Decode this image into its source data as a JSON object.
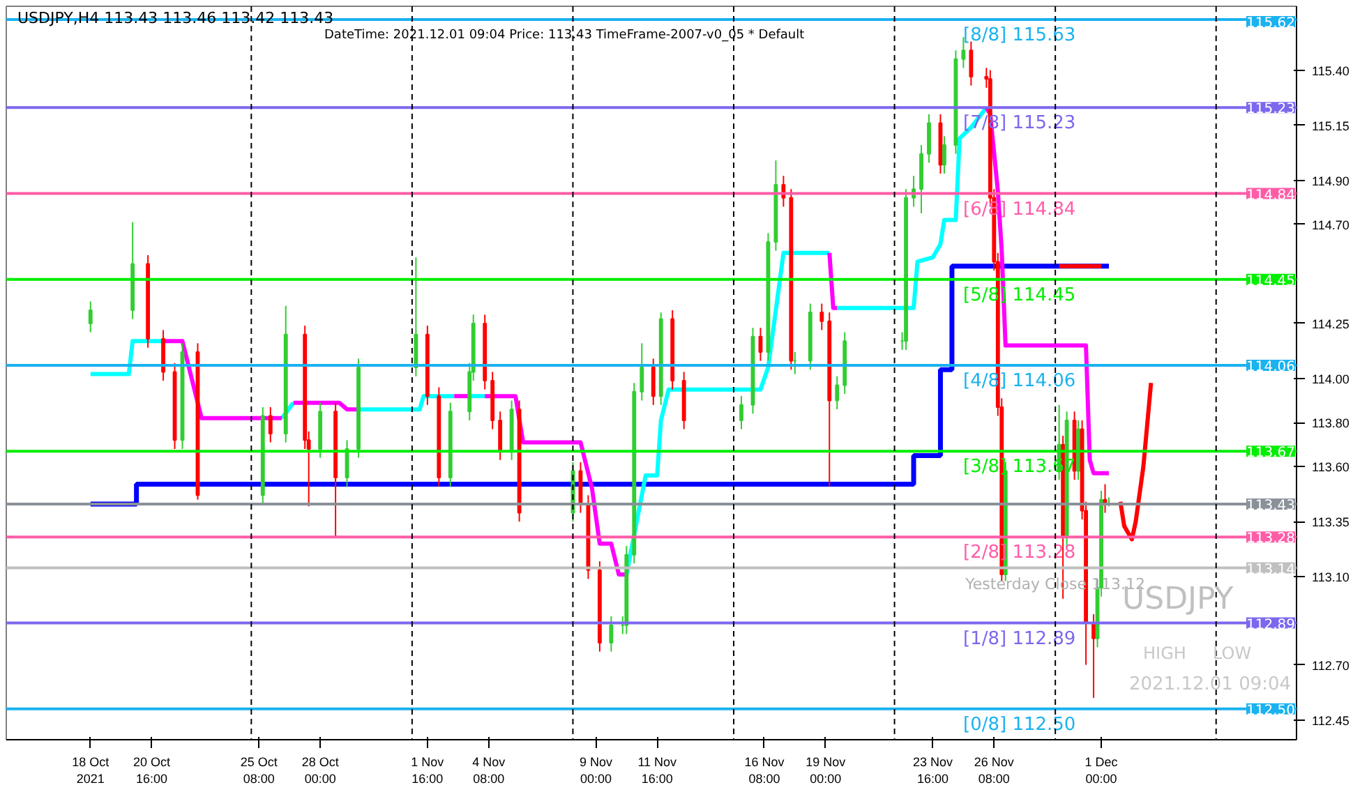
{
  "chart_data": {
    "type": "candlestick",
    "title": "USDJPY,H4  113.43 113.46 113.42 113.43",
    "subtitle": "DateTime: 2021.12.01 09:04   Price: 113.43   TimeFrame-2007-v0_05   *   Default",
    "x": [
      "2021-10-18T00:00",
      "2021-10-19T20:00",
      "2021-10-20T12:00",
      "2021-10-21T04:00",
      "2021-10-21T16:00",
      "2021-10-22T00:00",
      "2021-10-22T16:00",
      "2021-10-25T12:00",
      "2021-10-25T20:00",
      "2021-10-26T12:00",
      "2021-10-27T08:00",
      "2021-10-27T12:00",
      "2021-10-28T00:00",
      "2021-10-28T16:00",
      "2021-10-29T04:00",
      "2021-10-29T16:00",
      "2021-11-01T04:00",
      "2021-11-01T16:00",
      "2021-11-02T04:00",
      "2021-11-02T16:00",
      "2021-11-03T12:00",
      "2021-11-03T16:00",
      "2021-11-04T04:00",
      "2021-11-04T12:00",
      "2021-11-04T20:00",
      "2021-11-05T08:00",
      "2021-11-05T16:00",
      "2021-11-08T00:00",
      "2021-11-08T08:00",
      "2021-11-08T16:00",
      "2021-11-09T04:00",
      "2021-11-09T16:00",
      "2021-11-10T04:00",
      "2021-11-10T08:00",
      "2021-11-10T16:00",
      "2021-11-11T00:00",
      "2021-11-11T12:00",
      "2021-11-11T20:00",
      "2021-11-12T08:00",
      "2021-11-12T20:00",
      "2021-11-15T08:00",
      "2021-11-15T20:00",
      "2021-11-16T04:00",
      "2021-11-16T12:00",
      "2021-11-16T20:00",
      "2021-11-17T04:00",
      "2021-11-17T12:00",
      "2021-11-17T16:00",
      "2021-11-18T08:00",
      "2021-11-18T20:00",
      "2021-11-19T04:00",
      "2021-11-19T12:00",
      "2021-11-19T20:00",
      "2021-11-22T08:00",
      "2021-11-22T12:00",
      "2021-11-22T20:00",
      "2021-11-23T04:00",
      "2021-11-23T12:00",
      "2021-11-24T00:00",
      "2021-11-24T04:00",
      "2021-11-24T16:00",
      "2021-11-25T00:00",
      "2021-11-25T08:00",
      "2021-11-26T00:00",
      "2021-11-26T04:00",
      "2021-11-26T08:00",
      "2021-11-26T12:00",
      "2021-11-26T16:00",
      "2021-11-26T20:00",
      "2021-11-29T04:00",
      "2021-11-29T08:00",
      "2021-11-29T12:00",
      "2021-11-29T20:00",
      "2021-11-30T00:00",
      "2021-11-30T04:00",
      "2021-11-30T08:00",
      "2021-11-30T16:00",
      "2021-11-30T20:00",
      "2021-12-01T00:00",
      "2021-12-01T04:00",
      "2021-12-01T08:00"
    ],
    "ohlc": [
      [
        114.25,
        114.35,
        114.21,
        114.31
      ],
      [
        114.31,
        114.71,
        114.27,
        114.52
      ],
      [
        114.52,
        114.56,
        114.14,
        114.18
      ],
      [
        114.18,
        114.22,
        113.99,
        114.03
      ],
      [
        114.03,
        114.07,
        113.68,
        113.72
      ],
      [
        113.72,
        114.16,
        113.68,
        114.12
      ],
      [
        114.12,
        114.16,
        113.45,
        113.47
      ],
      [
        113.47,
        113.87,
        113.43,
        113.83
      ],
      [
        113.83,
        113.87,
        113.71,
        113.75
      ],
      [
        113.75,
        114.33,
        113.71,
        114.2
      ],
      [
        114.2,
        114.24,
        113.68,
        113.72
      ],
      [
        113.72,
        113.76,
        113.42,
        113.68
      ],
      [
        113.68,
        113.89,
        113.64,
        113.85
      ],
      [
        113.85,
        113.89,
        113.28,
        113.55
      ],
      [
        113.55,
        113.72,
        113.51,
        113.68
      ],
      [
        113.68,
        114.09,
        113.64,
        114.05
      ],
      [
        114.05,
        114.55,
        114.01,
        114.2
      ],
      [
        114.2,
        114.24,
        113.88,
        113.92
      ],
      [
        113.92,
        113.96,
        113.51,
        113.55
      ],
      [
        113.55,
        113.89,
        113.51,
        113.85
      ],
      [
        113.85,
        114.07,
        113.81,
        114.03
      ],
      [
        114.03,
        114.29,
        113.99,
        114.25
      ],
      [
        114.25,
        114.29,
        113.95,
        113.99
      ],
      [
        113.99,
        114.03,
        113.77,
        113.81
      ],
      [
        113.81,
        113.85,
        113.63,
        113.67
      ],
      [
        113.67,
        113.9,
        113.63,
        113.86
      ],
      [
        113.86,
        113.9,
        113.35,
        113.39
      ],
      [
        113.39,
        113.62,
        113.35,
        113.58
      ],
      [
        113.58,
        113.62,
        113.39,
        113.43
      ],
      [
        113.43,
        113.47,
        113.09,
        113.13
      ],
      [
        113.13,
        113.17,
        112.76,
        112.8
      ],
      [
        112.8,
        112.92,
        112.76,
        112.88
      ],
      [
        112.88,
        112.92,
        112.84,
        112.88
      ],
      [
        112.88,
        113.24,
        112.84,
        113.2
      ],
      [
        113.2,
        113.98,
        113.16,
        113.94
      ],
      [
        113.94,
        114.16,
        113.9,
        114.05
      ],
      [
        114.05,
        114.09,
        113.88,
        113.92
      ],
      [
        113.92,
        114.3,
        113.88,
        114.27
      ],
      [
        114.27,
        114.31,
        113.95,
        113.99
      ],
      [
        113.99,
        114.03,
        113.77,
        113.81
      ],
      [
        113.81,
        113.92,
        113.77,
        113.88
      ],
      [
        113.88,
        114.23,
        113.84,
        114.19
      ],
      [
        114.19,
        114.23,
        114.08,
        114.12
      ],
      [
        114.12,
        114.66,
        114.08,
        114.62
      ],
      [
        114.62,
        114.99,
        114.58,
        114.88
      ],
      [
        114.88,
        114.92,
        114.78,
        114.82
      ],
      [
        114.82,
        114.86,
        114.04,
        114.08
      ],
      [
        114.08,
        114.12,
        114.02,
        114.08
      ],
      [
        114.08,
        114.34,
        114.04,
        114.3
      ],
      [
        114.3,
        114.34,
        114.22,
        114.26
      ],
      [
        114.26,
        114.3,
        113.51,
        113.9
      ],
      [
        113.9,
        114.01,
        113.86,
        113.97
      ],
      [
        113.97,
        114.21,
        113.93,
        114.17
      ],
      [
        114.17,
        114.21,
        114.13,
        114.17
      ],
      [
        114.17,
        114.86,
        114.13,
        114.82
      ],
      [
        114.82,
        114.92,
        114.78,
        114.86
      ],
      [
        114.86,
        115.06,
        114.75,
        115.02
      ],
      [
        115.02,
        115.2,
        114.98,
        115.16
      ],
      [
        115.16,
        115.2,
        114.93,
        114.97
      ],
      [
        114.97,
        115.1,
        114.93,
        115.06
      ],
      [
        115.06,
        115.49,
        115.02,
        115.45
      ],
      [
        115.45,
        115.55,
        115.41,
        115.49
      ],
      [
        115.49,
        115.53,
        115.33,
        115.37
      ],
      [
        115.37,
        115.41,
        115.32,
        115.36
      ],
      [
        115.36,
        115.4,
        114.78,
        114.82
      ],
      [
        114.82,
        114.86,
        114.49,
        114.53
      ],
      [
        114.53,
        114.57,
        113.83,
        113.87
      ],
      [
        113.87,
        113.91,
        113.08,
        113.11
      ],
      [
        113.11,
        113.62,
        113.08,
        113.58
      ],
      [
        113.58,
        113.88,
        113.54,
        113.7
      ],
      [
        113.7,
        113.74,
        113.0,
        113.28
      ],
      [
        113.28,
        113.85,
        113.24,
        113.81
      ],
      [
        113.81,
        113.85,
        113.54,
        113.58
      ],
      [
        113.58,
        113.81,
        113.54,
        113.77
      ],
      [
        113.77,
        113.81,
        113.36,
        113.4
      ],
      [
        113.4,
        113.44,
        112.7,
        112.89
      ],
      [
        112.89,
        112.93,
        112.55,
        112.82
      ],
      [
        112.82,
        113.09,
        112.78,
        113.05
      ],
      [
        113.05,
        113.49,
        113.01,
        113.45
      ],
      [
        113.45,
        113.52,
        113.39,
        113.43
      ],
      [
        113.43,
        113.46,
        113.42,
        113.43
      ]
    ],
    "series": [
      {
        "type": "step",
        "color": "#0000ff",
        "x": [
          "2021-10-18T00:00",
          "2021-10-20T00:00",
          "2021-11-22T20:00",
          "2021-11-24T00:00",
          "2021-11-24T12:00",
          "2021-12-01T08:00"
        ],
        "values": [
          113.43,
          113.52,
          113.65,
          114.04,
          114.51,
          114.51
        ]
      },
      {
        "type": "line",
        "color": "#00ffff",
        "x": [
          "2021-10-18T00:00",
          "2021-10-19T16:00",
          "2021-10-19T20:00",
          "2021-10-21T04:00"
        ],
        "values": [
          114.02,
          114.02,
          114.17,
          114.17
        ]
      },
      {
        "type": "line",
        "color": "#00ffff",
        "x": [
          "2021-10-26T08:00",
          "2021-10-26T20:00"
        ],
        "values": [
          113.82,
          113.89
        ]
      },
      {
        "type": "line",
        "color": "#00ffff",
        "x": [
          "2021-10-29T16:00",
          "2021-11-01T08:00",
          "2021-11-01T12:00",
          "2021-11-02T20:00"
        ],
        "values": [
          113.86,
          113.86,
          113.92,
          113.92
        ]
      },
      {
        "type": "line",
        "color": "#00ffff",
        "x": [
          "2021-11-03T12:00",
          "2021-11-04T04:00"
        ],
        "values": [
          113.92,
          113.92
        ]
      },
      {
        "type": "line",
        "color": "#00ffff",
        "x": [
          "2021-11-10T08:00",
          "2021-11-11T04:00",
          "2021-11-11T16:00",
          "2021-11-11T20:00",
          "2021-11-12T04:00",
          "2021-11-16T04:00",
          "2021-11-16T12:00",
          "2021-11-17T04:00",
          "2021-11-19T04:00"
        ],
        "values": [
          113.11,
          113.56,
          113.56,
          113.81,
          113.95,
          113.95,
          114.05,
          114.57,
          114.57
        ]
      },
      {
        "type": "line",
        "color": "#00ffff",
        "x": [
          "2021-11-19T12:00",
          "2021-11-22T20:00",
          "2021-11-23T00:00",
          "2021-11-23T16:00",
          "2021-11-24T00:00",
          "2021-11-24T04:00",
          "2021-11-24T16:00",
          "2021-11-24T20:00",
          "2021-11-25T08:00",
          "2021-11-26T00:00"
        ],
        "values": [
          114.32,
          114.32,
          114.53,
          114.55,
          114.61,
          114.72,
          114.72,
          115.09,
          115.14,
          115.23
        ]
      },
      {
        "type": "line",
        "color": "#ff00ff",
        "x": [
          "2021-10-21T04:00",
          "2021-10-22T00:00",
          "2021-10-22T20:00",
          "2021-10-26T08:00"
        ],
        "values": [
          114.17,
          114.17,
          113.82,
          113.82
        ]
      },
      {
        "type": "line",
        "color": "#ff00ff",
        "x": [
          "2021-10-26T20:00",
          "2021-10-28T20:00",
          "2021-10-29T04:00",
          "2021-10-29T16:00"
        ],
        "values": [
          113.89,
          113.89,
          113.86,
          113.86
        ]
      },
      {
        "type": "line",
        "color": "#ff00ff",
        "x": [
          "2021-11-02T20:00",
          "2021-11-03T12:00"
        ],
        "values": [
          113.92,
          113.92
        ]
      },
      {
        "type": "line",
        "color": "#ff00ff",
        "x": [
          "2021-11-04T04:00",
          "2021-11-05T12:00",
          "2021-11-05T20:00",
          "2021-11-08T08:00",
          "2021-11-08T20:00",
          "2021-11-09T04:00",
          "2021-11-09T16:00",
          "2021-11-10T00:00",
          "2021-11-10T08:00"
        ],
        "values": [
          113.92,
          113.92,
          113.71,
          113.71,
          113.5,
          113.25,
          113.25,
          113.11,
          113.11
        ]
      },
      {
        "type": "line",
        "color": "#ff00ff",
        "x": [
          "2021-11-19T04:00",
          "2021-11-19T08:00",
          "2021-11-19T12:00"
        ],
        "values": [
          114.57,
          114.32,
          114.32
        ]
      },
      {
        "type": "line",
        "color": "#ff00ff",
        "x": [
          "2021-11-26T00:00",
          "2021-11-26T04:00",
          "2021-11-26T12:00",
          "2021-11-26T16:00",
          "2021-11-26T20:00",
          "2021-11-30T08:00",
          "2021-11-30T12:00",
          "2021-11-30T16:00",
          "2021-12-01T08:00"
        ],
        "values": [
          115.23,
          115.2,
          114.85,
          114.58,
          114.15,
          114.15,
          113.63,
          113.57,
          113.57
        ]
      },
      {
        "type": "line",
        "color": "#ff0000",
        "x": [
          "2021-11-29T04:00",
          "2021-12-01T00:00"
        ],
        "values": [
          114.51,
          114.51
        ]
      },
      {
        "type": "line",
        "color": "#ff0000",
        "x": [
          "2021-12-01T20:00",
          "2021-12-02T00:00",
          "2021-12-02T08:00",
          "2021-12-02T12:00",
          "2021-12-02T20:00",
          "2021-12-03T04:00"
        ],
        "values": [
          113.44,
          113.33,
          113.27,
          113.35,
          113.6,
          113.98
        ]
      }
    ],
    "xlim": [
      "2021-10-14T08:00",
      "2021-12-09T12:00"
    ],
    "ylim": [
      112.36,
      115.69
    ],
    "xticks": [
      {
        "value": "2021-10-18T00:00",
        "label": "18 Oct 2021"
      },
      {
        "value": "2021-10-20T16:00",
        "label": "20 Oct 16:00"
      },
      {
        "value": "2021-10-25T08:00",
        "label": "25 Oct 08:00"
      },
      {
        "value": "2021-10-28T00:00",
        "label": "28 Oct 00:00"
      },
      {
        "value": "2021-11-01T16:00",
        "label": "1 Nov 16:00"
      },
      {
        "value": "2021-11-04T08:00",
        "label": "4 Nov 08:00"
      },
      {
        "value": "2021-11-09T00:00",
        "label": "9 Nov 00:00"
      },
      {
        "value": "2021-11-11T16:00",
        "label": "11 Nov 16:00"
      },
      {
        "value": "2021-11-16T08:00",
        "label": "16 Nov 08:00"
      },
      {
        "value": "2021-11-19T00:00",
        "label": "19 Nov 00:00"
      },
      {
        "value": "2021-11-23T16:00",
        "label": "23 Nov 16:00"
      },
      {
        "value": "2021-11-26T08:00",
        "label": "26 Nov 08:00"
      },
      {
        "value": "2021-12-01T00:00",
        "label": "1 Dec 00:00"
      }
    ],
    "yticks": [
      {
        "value": 115.4,
        "label": "115.40"
      },
      {
        "value": 115.15,
        "label": "115.15"
      },
      {
        "value": 114.9,
        "label": "114.90"
      },
      {
        "value": 114.7,
        "label": "114.70"
      },
      {
        "value": 114.25,
        "label": "114.25"
      },
      {
        "value": 114.0,
        "label": "114.00"
      },
      {
        "value": 113.8,
        "label": "113.80"
      },
      {
        "value": 113.6,
        "label": "113.60"
      },
      {
        "value": 113.35,
        "label": "113.35"
      },
      {
        "value": 113.1,
        "label": "113.10"
      },
      {
        "value": 112.7,
        "label": "112.70"
      },
      {
        "value": 112.45,
        "label": "112.45"
      }
    ],
    "ref_lines": [
      {
        "axis": "y",
        "value": 115.63,
        "label": "[8/8]  115.63",
        "color": "#1ab2f0"
      },
      {
        "axis": "y",
        "value": 115.23,
        "label": "[7/8]  115.23",
        "color": "#7b68ee"
      },
      {
        "axis": "y",
        "value": 114.84,
        "label": "[6/8]  114.84",
        "color": "#ff5ca8"
      },
      {
        "axis": "y",
        "value": 114.45,
        "label": "[5/8]  114.45",
        "color": "#00ee00"
      },
      {
        "axis": "y",
        "value": 114.06,
        "label": "[4/8]  114.06",
        "color": "#1ab2f0"
      },
      {
        "axis": "y",
        "value": 113.67,
        "label": "[3/8]  113.67",
        "color": "#00ee00"
      },
      {
        "axis": "y",
        "value": 113.28,
        "label": "[2/8]  113.28",
        "color": "#ff5ca8"
      },
      {
        "axis": "y",
        "value": 112.89,
        "label": "[1/8]  112.89",
        "color": "#7b68ee"
      },
      {
        "axis": "y",
        "value": 112.5,
        "label": "[0/8]  112.50",
        "color": "#1ab2f0"
      },
      {
        "axis": "y",
        "value": 113.43,
        "label": null,
        "color": "#8a9199"
      },
      {
        "axis": "y",
        "value": 113.14,
        "label": null,
        "color": "#c0c0c0"
      },
      {
        "axis": "x",
        "value": "2021-10-25T00:00",
        "label": null,
        "color": "#000000",
        "line_style": "dashed"
      },
      {
        "axis": "x",
        "value": "2021-11-01T00:00",
        "label": null,
        "color": "#000000",
        "line_style": "dashed"
      },
      {
        "axis": "x",
        "value": "2021-11-08T00:00",
        "label": null,
        "color": "#000000",
        "line_style": "dashed"
      },
      {
        "axis": "x",
        "value": "2021-11-15T00:00",
        "label": null,
        "color": "#000000",
        "line_style": "dashed"
      },
      {
        "axis": "x",
        "value": "2021-11-22T00:00",
        "label": null,
        "color": "#000000",
        "line_style": "dashed"
      },
      {
        "axis": "x",
        "value": "2021-11-29T00:00",
        "label": null,
        "color": "#000000",
        "line_style": "dashed"
      },
      {
        "axis": "x",
        "value": "2021-12-06T00:00",
        "label": null,
        "color": "#000000",
        "line_style": "dashed"
      }
    ],
    "annotations": [
      {
        "text": "115.62",
        "x": "2021-12-09T12:00",
        "y": 115.62
      },
      {
        "text": "115.23",
        "x": "2021-12-09T12:00",
        "y": 115.23
      },
      {
        "text": "114.84",
        "x": "2021-12-09T12:00",
        "y": 114.84
      },
      {
        "text": "114.45",
        "x": "2021-12-09T12:00",
        "y": 114.45
      },
      {
        "text": "114.06",
        "x": "2021-12-09T12:00",
        "y": 114.06
      },
      {
        "text": "113.67",
        "x": "2021-12-09T12:00",
        "y": 113.67
      },
      {
        "text": "113.43",
        "x": "2021-12-09T12:00",
        "y": 113.43
      },
      {
        "text": "113.28",
        "x": "2021-12-09T12:00",
        "y": 113.28
      },
      {
        "text": "113.14",
        "x": "2021-12-09T12:00",
        "y": 113.14
      },
      {
        "text": "112.89",
        "x": "2021-12-09T12:00",
        "y": 112.89
      },
      {
        "text": "112.50",
        "x": "2021-12-09T12:00",
        "y": 112.5
      },
      {
        "text": "Yesterday Close 113.12",
        "x": "2021-11-29T00:00",
        "y": 113.12
      },
      "USDJPY",
      "HIGH",
      "LOW",
      "2021.12.01 09:04"
    ],
    "grid": false
  }
}
